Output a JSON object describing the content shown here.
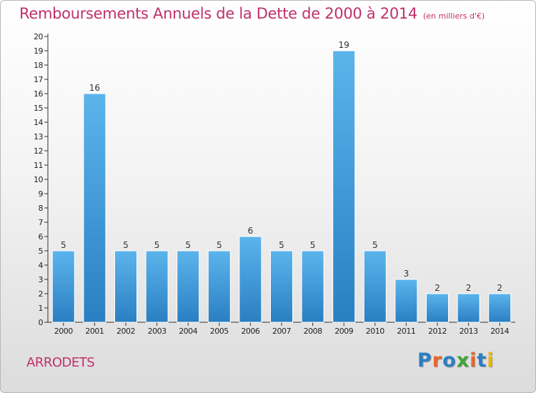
{
  "title": "Remboursements Annuels de la Dette de 2000 à 2014",
  "subtitle": "(en milliers d'€)",
  "commune": "ARRODETS",
  "logo": {
    "text": "Proxiti",
    "colors": [
      "#2b7fc3",
      "#e8652b",
      "#2b7fc3",
      "#3fa535",
      "#e8652b",
      "#2b7fc3",
      "#f0b400"
    ]
  },
  "colors": {
    "accent": "#c0306a",
    "bar_top": "#5cb4ec",
    "bar_bottom": "#2a7fc2",
    "axis": "#333333"
  },
  "chart_data": {
    "type": "bar",
    "title": "Remboursements Annuels de la Dette de 2000 à 2014",
    "subtitle": "(en milliers d'€)",
    "categories": [
      "2000",
      "2001",
      "2002",
      "2003",
      "2004",
      "2005",
      "2006",
      "2007",
      "2008",
      "2009",
      "2010",
      "2011",
      "2012",
      "2013",
      "2014"
    ],
    "values": [
      5,
      16,
      5,
      5,
      5,
      5,
      6,
      5,
      5,
      19,
      5,
      3,
      2,
      2,
      2
    ],
    "ylim": [
      0,
      20
    ],
    "yticks": [
      0,
      1,
      2,
      3,
      4,
      5,
      6,
      7,
      8,
      9,
      10,
      11,
      12,
      13,
      14,
      15,
      16,
      17,
      18,
      19,
      20
    ],
    "xlabel": "",
    "ylabel": "",
    "grid": false,
    "data_labels": true
  }
}
